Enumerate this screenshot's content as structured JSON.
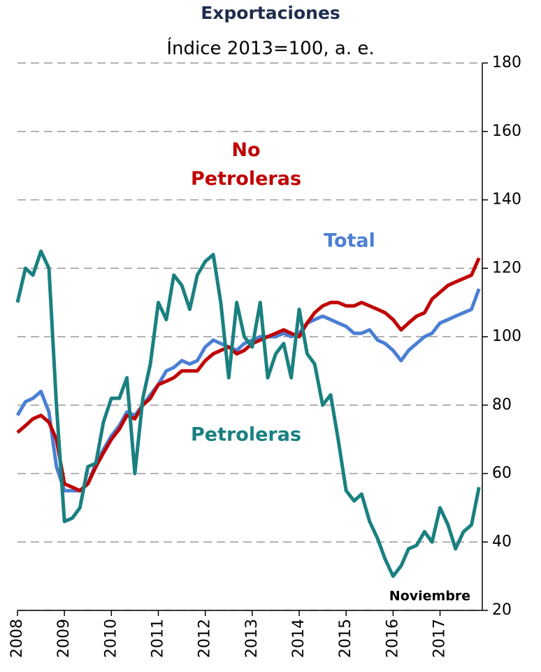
{
  "chart_data": {
    "type": "line",
    "title": "Exportaciones",
    "subtitle": "Índice 2013=100, a. e.",
    "annotation": "Noviembre",
    "x": [
      2008,
      2008.17,
      2008.33,
      2008.5,
      2008.67,
      2008.83,
      2009,
      2009.17,
      2009.33,
      2009.5,
      2009.67,
      2009.83,
      2010,
      2010.17,
      2010.33,
      2010.5,
      2010.67,
      2010.83,
      2011,
      2011.17,
      2011.33,
      2011.5,
      2011.67,
      2011.83,
      2012,
      2012.17,
      2012.33,
      2012.5,
      2012.67,
      2012.83,
      2013,
      2013.17,
      2013.33,
      2013.5,
      2013.67,
      2013.83,
      2014,
      2014.17,
      2014.33,
      2014.5,
      2014.67,
      2014.83,
      2015,
      2015.17,
      2015.33,
      2015.5,
      2015.67,
      2015.83,
      2016,
      2016.17,
      2016.33,
      2016.5,
      2016.67,
      2016.83,
      2017,
      2017.17,
      2017.33,
      2017.5,
      2017.67,
      2017.83
    ],
    "series": [
      {
        "name": "Total",
        "color": "#4a7fd4",
        "values": [
          77,
          81,
          82,
          84,
          78,
          62,
          55,
          55,
          55,
          57,
          63,
          67,
          71,
          74,
          78,
          77,
          80,
          83,
          86,
          90,
          91,
          93,
          92,
          93,
          97,
          99,
          98,
          97,
          96,
          98,
          99,
          100,
          100,
          100,
          101,
          100,
          101,
          104,
          105,
          106,
          105,
          104,
          103,
          101,
          101,
          102,
          99,
          98,
          96,
          93,
          96,
          98,
          100,
          101,
          104,
          105,
          106,
          107,
          108,
          114
        ]
      },
      {
        "name": "No Petroleras",
        "color": "#c00000",
        "values": [
          72,
          74,
          76,
          77,
          75,
          70,
          57,
          56,
          55,
          57,
          62,
          66,
          70,
          73,
          77,
          76,
          80,
          82,
          86,
          87,
          88,
          90,
          90,
          90,
          93,
          95,
          96,
          97,
          95,
          96,
          98,
          99,
          100,
          101,
          102,
          101,
          100,
          104,
          107,
          109,
          110,
          110,
          109,
          109,
          110,
          109,
          108,
          107,
          105,
          102,
          104,
          106,
          107,
          111,
          113,
          115,
          116,
          117,
          118,
          123
        ]
      },
      {
        "name": "Petroleras",
        "color": "#1a8080",
        "values": [
          110,
          120,
          118,
          125,
          120,
          80,
          46,
          47,
          50,
          62,
          63,
          75,
          82,
          82,
          88,
          60,
          82,
          92,
          110,
          105,
          118,
          115,
          108,
          118,
          122,
          124,
          110,
          88,
          110,
          100,
          97,
          110,
          88,
          95,
          98,
          88,
          108,
          95,
          92,
          80,
          83,
          70,
          55,
          52,
          54,
          46,
          41,
          35,
          30,
          33,
          38,
          39,
          43,
          40,
          50,
          45,
          38,
          43,
          45,
          56
        ]
      }
    ],
    "xlim": [
      2008,
      2017.9
    ],
    "xticks": [
      2008,
      2009,
      2010,
      2011,
      2012,
      2013,
      2014,
      2015,
      2016,
      2017
    ],
    "ylim": [
      20,
      180
    ],
    "yticks": [
      20,
      40,
      60,
      80,
      100,
      120,
      140,
      160,
      180
    ],
    "grid": true
  }
}
